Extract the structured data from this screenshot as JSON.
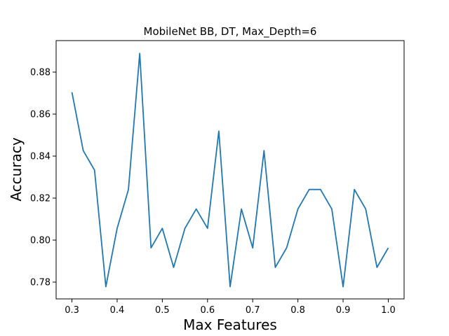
{
  "chart_data": {
    "type": "line",
    "title": "MobileNet BB, DT, Max_Depth=6",
    "xlabel": "Max Features",
    "ylabel": "Accuracy",
    "xlim": [
      0.265,
      1.035
    ],
    "ylim": [
      0.772,
      0.895
    ],
    "grid": false,
    "line_color": "#1f77b4",
    "xticks": [
      0.3,
      0.4,
      0.5,
      0.6,
      0.7,
      0.8,
      0.9,
      1.0
    ],
    "xtick_labels": [
      "0.3",
      "0.4",
      "0.5",
      "0.6",
      "0.7",
      "0.8",
      "0.9",
      "1.0"
    ],
    "yticks": [
      0.78,
      0.8,
      0.82,
      0.84,
      0.86,
      0.88
    ],
    "ytick_labels": [
      "0.78",
      "0.80",
      "0.82",
      "0.84",
      "0.86",
      "0.88"
    ],
    "series": [
      {
        "x": [
          0.3,
          0.325,
          0.35,
          0.375,
          0.4,
          0.425,
          0.45,
          0.475,
          0.5,
          0.525,
          0.55,
          0.575,
          0.6,
          0.625,
          0.65,
          0.675,
          0.7,
          0.725,
          0.75,
          0.775,
          0.8,
          0.825,
          0.85,
          0.875,
          0.9,
          0.925,
          0.95,
          0.975,
          1.0
        ],
        "values": [
          0.8704,
          0.8426,
          0.8333,
          0.7778,
          0.8056,
          0.8241,
          0.8889,
          0.7963,
          0.8056,
          0.787,
          0.8056,
          0.8148,
          0.8056,
          0.8519,
          0.7778,
          0.8148,
          0.7963,
          0.8426,
          0.787,
          0.7963,
          0.8148,
          0.8241,
          0.8241,
          0.8148,
          0.7778,
          0.8241,
          0.8148,
          0.787,
          0.7963
        ]
      }
    ]
  }
}
